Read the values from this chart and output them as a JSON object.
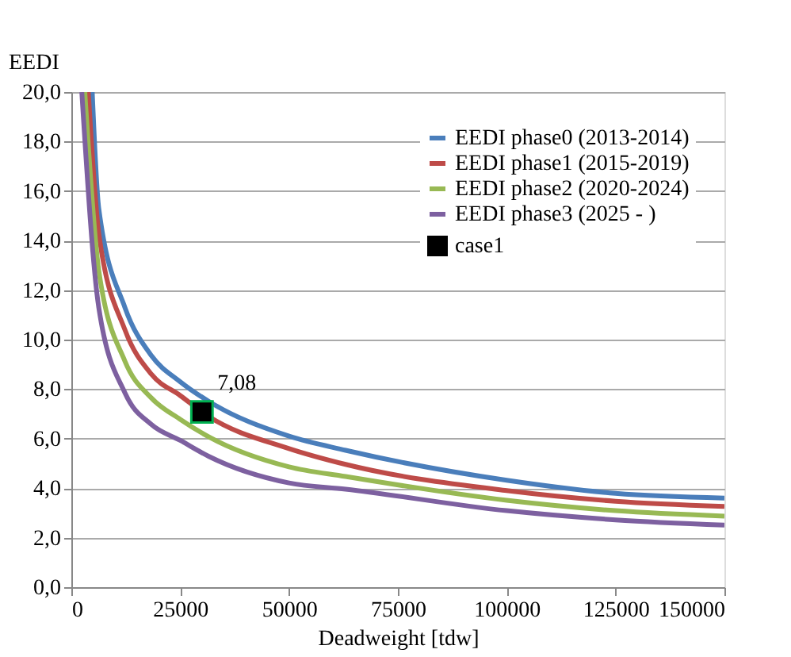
{
  "chart_data": {
    "type": "line",
    "xlabel": "Deadweight [tdw]",
    "ylabel": "EEDI",
    "xlim": [
      0,
      150000
    ],
    "xticks": [
      0,
      25000,
      50000,
      75000,
      100000,
      125000,
      150000
    ],
    "ylim": [
      0,
      20
    ],
    "yticks": [
      {
        "value": 0,
        "label": "0,0"
      },
      {
        "value": 2,
        "label": "2,0"
      },
      {
        "value": 4,
        "label": "4,0"
      },
      {
        "value": 6,
        "label": "6,0"
      },
      {
        "value": 8,
        "label": "8,0"
      },
      {
        "value": 10,
        "label": "10,0"
      },
      {
        "value": 12,
        "label": "12,0"
      },
      {
        "value": 14,
        "label": "14,0"
      },
      {
        "value": 16,
        "label": "16,0"
      },
      {
        "value": 18,
        "label": "18,0"
      },
      {
        "value": 20,
        "label": "20,0"
      }
    ],
    "grid": "y",
    "legend": "top right",
    "line_style": "solid",
    "marker": "none",
    "series": [
      {
        "name": "EEDI phase0 (2013-2014)",
        "color": "#4a7ebb",
        "x": [
          4800,
          6300,
          12300,
          18400,
          25000,
          31600,
          50000,
          63000,
          100000,
          125000,
          150000
        ],
        "values": [
          20,
          15.3,
          11.3,
          9.35,
          8.3,
          7.5,
          6.1,
          5.53,
          4.32,
          3.79,
          3.6
        ]
      },
      {
        "name": "EEDI phase1 (2015-2019)",
        "color": "#be4b48",
        "x": [
          3900,
          6300,
          12300,
          18400,
          25000,
          31600,
          50000,
          63000,
          100000,
          125000,
          150000
        ],
        "values": [
          20,
          14.3,
          10.4,
          8.6,
          7.74,
          6.89,
          5.6,
          4.96,
          3.9,
          3.47,
          3.26
        ]
      },
      {
        "name": "EEDI phase2 (2020-2024)",
        "color": "#98b954",
        "x": [
          3100,
          6300,
          12300,
          18400,
          25000,
          31600,
          50000,
          63000,
          100000,
          125000,
          150000
        ],
        "values": [
          20,
          12.8,
          9.13,
          7.64,
          6.78,
          6.07,
          4.86,
          4.47,
          3.51,
          3.09,
          2.87
        ]
      },
      {
        "name": "EEDI phase3 (2025 - )",
        "color": "#7d60a0",
        "x": [
          2400,
          6300,
          12300,
          18400,
          25000,
          31600,
          50000,
          63000,
          100000,
          125000,
          150000
        ],
        "values": [
          20,
          11.3,
          7.85,
          6.57,
          5.93,
          5.28,
          4.21,
          3.96,
          3.09,
          2.72,
          2.51
        ]
      },
      {
        "name": "case1",
        "color": "#000000",
        "type": "scatter",
        "marker": "square",
        "x": [
          30000
        ],
        "values": [
          7.08
        ],
        "value_labels": [
          "7,08"
        ]
      }
    ]
  }
}
